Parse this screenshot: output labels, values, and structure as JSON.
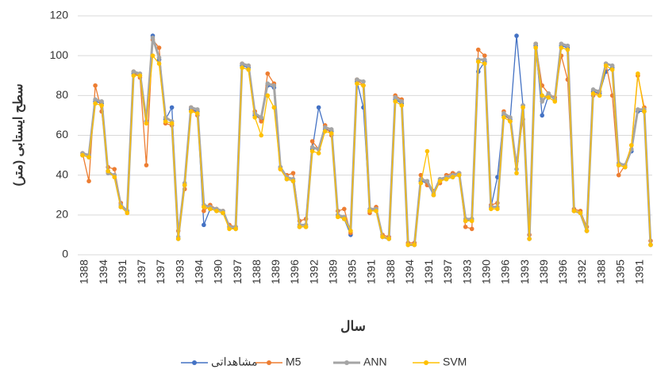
{
  "chart_data": {
    "type": "line",
    "ylabel": "سطح ایستابی (متر)",
    "xlabel": "سال",
    "categories": [
      "1388",
      null,
      null,
      "1394",
      null,
      null,
      "1391",
      null,
      null,
      "1397",
      null,
      null,
      "1397",
      null,
      null,
      "1393",
      null,
      null,
      "1394",
      null,
      null,
      "1390",
      null,
      null,
      "1397",
      null,
      null,
      "1388",
      null,
      null,
      "1389",
      null,
      null,
      "1396",
      null,
      null,
      "1392",
      null,
      null,
      "1389",
      null,
      null,
      "1395",
      null,
      null,
      "1391",
      null,
      null,
      "1388",
      null,
      null,
      "1394",
      null,
      null,
      "1391",
      null,
      null,
      "1397",
      null,
      null,
      "1393",
      null,
      null,
      "1390",
      null,
      null,
      "1396",
      null,
      null,
      "1393",
      null,
      null,
      "1389",
      null,
      null,
      "1396",
      null,
      null,
      "1392",
      null,
      null,
      "1388",
      null,
      null,
      "1395",
      null,
      null,
      "1391",
      null,
      null
    ],
    "series": [
      {
        "name": "مشاهداتی",
        "color": "#4472c4",
        "values": [
          50,
          49,
          77,
          76,
          42,
          40,
          24,
          22,
          91,
          90,
          67,
          110,
          98,
          68,
          74,
          8,
          35,
          73,
          72,
          15,
          23,
          22,
          21,
          14,
          13,
          95,
          94,
          70,
          68,
          85,
          84,
          44,
          38,
          37,
          14,
          14,
          53,
          74,
          63,
          62,
          20,
          18,
          10,
          87,
          74,
          22,
          23,
          9,
          8,
          78,
          76,
          5,
          5,
          37,
          36,
          30,
          37,
          38,
          39,
          40,
          17,
          18,
          92,
          97,
          24,
          39,
          70,
          68,
          110,
          75,
          8,
          105,
          70,
          80,
          78,
          105,
          104,
          22,
          21,
          12,
          82,
          81,
          92,
          94,
          45,
          44,
          52,
          72,
          72,
          5
        ]
      },
      {
        "name": "M5",
        "color": "#ed7d31",
        "values": [
          51,
          37,
          85,
          72,
          44,
          43,
          26,
          21,
          92,
          89,
          45,
          108,
          104,
          66,
          65,
          12,
          33,
          74,
          70,
          22,
          25,
          23,
          22,
          15,
          14,
          96,
          95,
          72,
          67,
          91,
          86,
          43,
          40,
          41,
          17,
          18,
          57,
          53,
          65,
          60,
          22,
          23,
          11,
          88,
          85,
          21,
          24,
          10,
          9,
          80,
          78,
          6,
          6,
          40,
          35,
          32,
          36,
          40,
          41,
          41,
          14,
          13,
          103,
          100,
          25,
          26,
          72,
          67,
          47,
          68,
          10,
          106,
          85,
          81,
          79,
          100,
          88,
          23,
          22,
          14,
          80,
          82,
          96,
          80,
          40,
          45,
          55,
          90,
          74,
          7
        ]
      },
      {
        "name": "ANN",
        "color": "#a5a5a5",
        "values": [
          51,
          50,
          78,
          77,
          41,
          40,
          25,
          22,
          92,
          91,
          67,
          109,
          99,
          69,
          67,
          9,
          36,
          74,
          73,
          25,
          24,
          23,
          22,
          14,
          14,
          96,
          95,
          71,
          69,
          86,
          85,
          44,
          39,
          38,
          15,
          15,
          54,
          53,
          64,
          63,
          20,
          19,
          12,
          88,
          87,
          23,
          23,
          9,
          8,
          79,
          77,
          5,
          5,
          38,
          37,
          31,
          38,
          39,
          40,
          41,
          18,
          18,
          98,
          98,
          24,
          24,
          71,
          69,
          43,
          75,
          8,
          106,
          77,
          81,
          78,
          106,
          105,
          22,
          21,
          12,
          83,
          82,
          96,
          95,
          46,
          45,
          53,
          73,
          73,
          5
        ]
      },
      {
        "name": "SVM",
        "color": "#ffc000",
        "values": [
          50,
          49,
          76,
          75,
          42,
          39,
          24,
          21,
          90,
          90,
          66,
          100,
          96,
          67,
          66,
          8,
          35,
          72,
          71,
          24,
          23,
          22,
          21,
          13,
          13,
          94,
          93,
          69,
          60,
          80,
          74,
          43,
          38,
          37,
          14,
          14,
          52,
          51,
          62,
          61,
          19,
          18,
          12,
          86,
          85,
          22,
          22,
          9,
          8,
          77,
          75,
          5,
          5,
          36,
          52,
          30,
          37,
          38,
          39,
          40,
          17,
          17,
          97,
          96,
          23,
          23,
          69,
          67,
          41,
          74,
          8,
          104,
          80,
          79,
          77,
          104,
          103,
          22,
          21,
          12,
          81,
          80,
          95,
          93,
          45,
          44,
          55,
          91,
          72,
          5
        ]
      }
    ],
    "ylim": [
      0,
      120
    ],
    "yticks": [
      0,
      20,
      40,
      60,
      80,
      100,
      120
    ],
    "grid": true,
    "legend": "bottom"
  }
}
